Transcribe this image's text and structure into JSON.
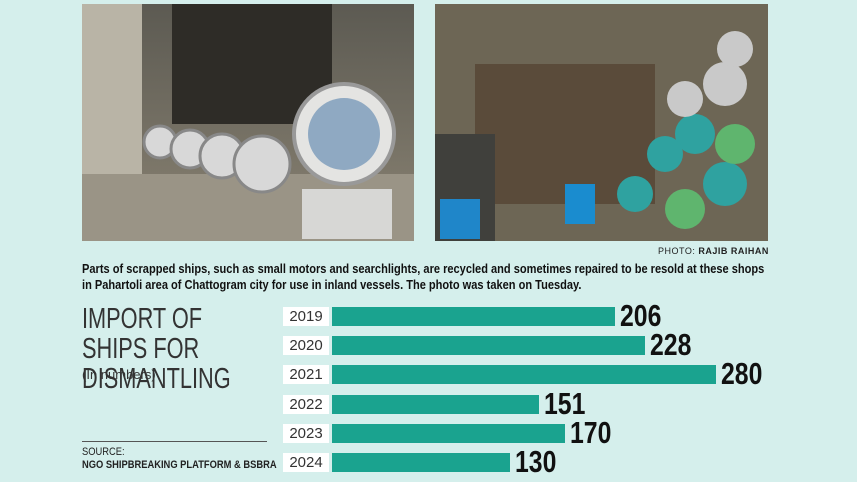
{
  "photo_credit_label": "PHOTO:",
  "photo_credit": "RAJIB RAIHAN",
  "caption": "Parts of scrapped ships, such as small motors and searchlights, are recycled and sometimes repaired to be resold at these shops in Pahartoli area of Chattogram city for use in inland vessels. The photo was taken on Tuesday.",
  "chart_data": {
    "type": "bar",
    "orientation": "horizontal",
    "title": "IMPORT OF SHIPS FOR DISMANTLING",
    "subtitle": "(In numbers)",
    "categories": [
      "2019",
      "2020",
      "2021",
      "2022",
      "2023",
      "2024"
    ],
    "values": [
      206,
      228,
      280,
      151,
      170,
      130
    ],
    "color": "#1aa38f",
    "source_label": "SOURCE:",
    "source": "NGO SHIPBREAKING PLATFORM & BSBRA"
  }
}
